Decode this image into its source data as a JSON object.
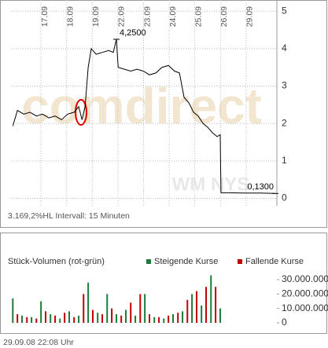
{
  "chart_data": [
    {
      "type": "line",
      "xlim": [
        -1.17,
        9.2
      ],
      "xticks": [
        {
          "value": 0,
          "label": "17.09"
        },
        {
          "value": 1,
          "label": "18.09"
        },
        {
          "value": 2,
          "label": "19.09"
        },
        {
          "value": 3,
          "label": "22.09"
        },
        {
          "value": 4,
          "label": "23.09"
        },
        {
          "value": 5,
          "label": "24.09"
        },
        {
          "value": 6,
          "label": "25.09"
        },
        {
          "value": 7,
          "label": "26.09"
        },
        {
          "value": 8,
          "label": "29.09"
        }
      ],
      "ylim": [
        -0.2,
        5.3
      ],
      "yticks": [
        0,
        1,
        2,
        3,
        4,
        5
      ],
      "grid": true,
      "series": [
        {
          "color": "#000000",
          "x": [
            -1.1,
            -0.92,
            -0.67,
            -0.43,
            -0.18,
            0.06,
            0.31,
            0.55,
            0.8,
            1.04,
            1.29,
            1.47,
            1.6,
            1.72,
            1.84,
            1.96,
            2.15,
            2.39,
            2.64,
            2.82,
            2.94,
            3.01,
            3.25,
            3.5,
            3.74,
            3.99,
            4.23,
            4.48,
            4.72,
            4.97,
            5.21,
            5.4,
            5.58,
            5.77,
            5.95,
            6.13,
            6.32,
            6.5,
            6.69,
            6.87,
            6.99,
            7.02,
            7.3,
            7.91,
            8.53,
            9.14
          ],
          "values": [
            1.93,
            2.35,
            2.25,
            2.3,
            2.2,
            2.25,
            2.15,
            2.2,
            2.1,
            2.25,
            2.3,
            2.45,
            2.1,
            2.45,
            3.5,
            4.0,
            3.85,
            3.9,
            3.95,
            3.9,
            4.25,
            3.5,
            3.45,
            3.4,
            3.45,
            3.4,
            3.3,
            3.35,
            3.5,
            3.55,
            3.4,
            3.35,
            2.7,
            2.55,
            2.3,
            2.2,
            2.0,
            1.9,
            1.75,
            1.65,
            1.7,
            0.15,
            0.15,
            0.14,
            0.14,
            0.13
          ]
        }
      ],
      "annotations": [
        {
          "text": "4,2500",
          "x": 2.94,
          "y": 4.25
        },
        {
          "text": "0,1300",
          "x": 9.14,
          "y": 0.13
        }
      ],
      "watermarks": [
        "comdirect",
        "WM NYS"
      ],
      "footer": "3.169,2%HL  Intervall: 15 Minuten"
    },
    {
      "type": "bar",
      "title": "Stück-Volumen (rot-grün)",
      "xlim": [
        -1.17,
        9.2
      ],
      "ylim": [
        0,
        36000000
      ],
      "yticks": [
        0,
        {
          "value": 10000000,
          "label": "10.000.000"
        },
        {
          "value": 20000000,
          "label": "20.000.000"
        },
        {
          "value": 30000000,
          "label": "30.000.000"
        }
      ],
      "series": [
        {
          "name": "Steigende Kurse",
          "color": "#1e7b3c",
          "x": [
            -1.1,
            -0.74,
            -0.37,
            0,
            0.37,
            0.74,
            1.1,
            1.47,
            1.84,
            2.21,
            2.58,
            2.94,
            3.31,
            3.68,
            4.05,
            4.42,
            4.79,
            5.15,
            5.52,
            5.89,
            6.26,
            6.63,
            6.99
          ],
          "values": [
            17000000,
            5000000,
            4000000,
            15000000,
            6000000,
            3000000,
            8000000,
            5000000,
            28000000,
            7000000,
            20000000,
            6000000,
            9000000,
            5000000,
            20000000,
            4000000,
            3000000,
            6000000,
            8000000,
            20000000,
            12000000,
            33000000,
            10000000
          ]
        },
        {
          "name": "Fallende Kurse",
          "color": "#c00000",
          "x": [
            -0.92,
            -0.55,
            -0.18,
            0.18,
            0.55,
            0.92,
            1.29,
            1.66,
            2.02,
            2.39,
            2.76,
            3.13,
            3.5,
            3.87,
            4.23,
            4.6,
            4.97,
            5.34,
            5.71,
            6.07,
            6.44,
            6.81
          ],
          "values": [
            6000000,
            4000000,
            3000000,
            8000000,
            5000000,
            7000000,
            4000000,
            20000000,
            9000000,
            6000000,
            10000000,
            5000000,
            14000000,
            20000000,
            6000000,
            4000000,
            5000000,
            7000000,
            16000000,
            22000000,
            25000000,
            25000000
          ]
        }
      ],
      "footer": "29.09.08   22:08 Uhr"
    }
  ]
}
